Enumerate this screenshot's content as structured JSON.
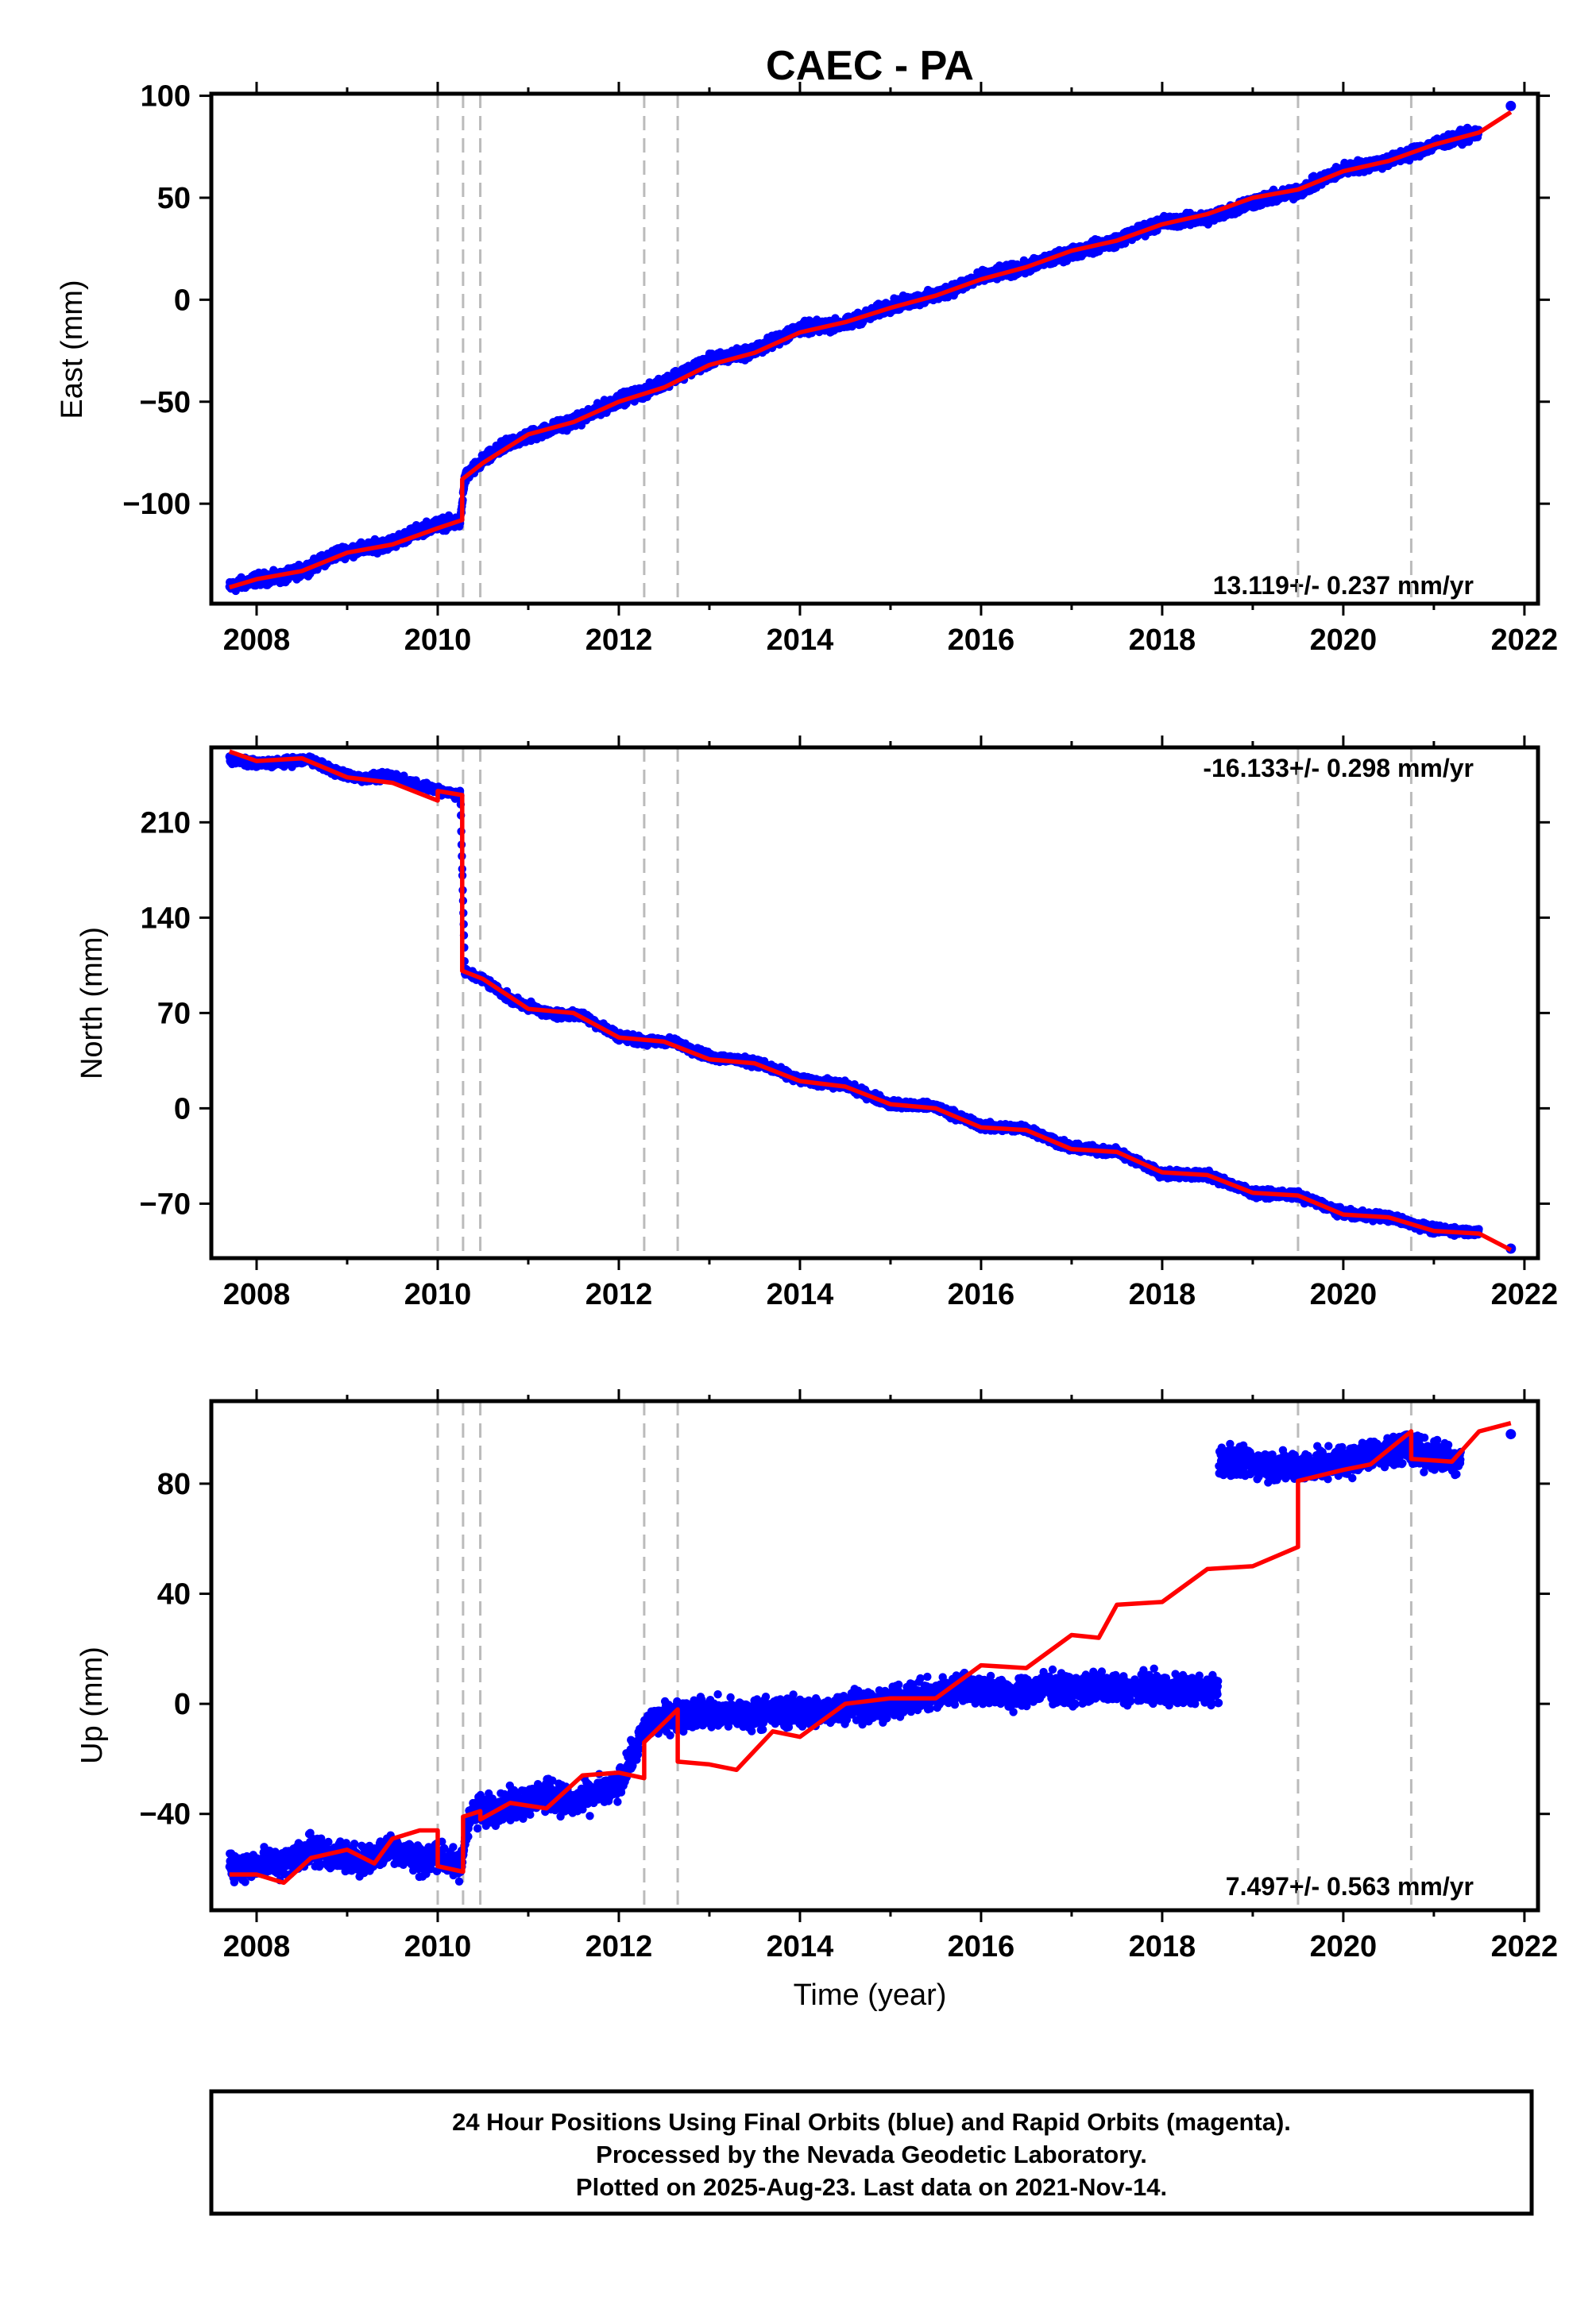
{
  "title": "CAEC - PA",
  "xlabel": "Time (year)",
  "footer": {
    "line1": "24 Hour Positions Using Final Orbits (blue) and Rapid Orbits (magenta).",
    "line2": "Processed by the Nevada Geodetic Laboratory.",
    "line3": "Plotted on 2025-Aug-23. Last data on 2021-Nov-14."
  },
  "colors": {
    "observed": "#0000ff",
    "model": "#ff0000",
    "steps": "#bbbbbb"
  },
  "chart_data": [
    {
      "type": "scatter",
      "component": "east",
      "ylabel": "East (mm)",
      "rate_label": "13.119+/- 0.237 mm/yr",
      "grid": false,
      "xlim": [
        2007.5,
        2022.15
      ],
      "ylim": [
        -149,
        101
      ],
      "xticks": [
        2008,
        2010,
        2012,
        2014,
        2016,
        2018,
        2020,
        2022
      ],
      "yticks": [
        -100,
        -50,
        0,
        50,
        100
      ],
      "ytick_labels": [
        "−100",
        "−50",
        "0",
        "50",
        "100"
      ],
      "step_epochs": [
        2010.0,
        2010.28,
        2010.47,
        2012.28,
        2012.65,
        2019.5,
        2020.75
      ],
      "series": [
        {
          "role": "observed",
          "x": [
            2007.7,
            2008.0,
            2008.3,
            2008.6,
            2008.9,
            2009.2,
            2009.5,
            2009.8,
            2010.0,
            2010.25,
            2010.3,
            2010.5,
            2010.8,
            2011.2,
            2011.6,
            2012.0,
            2012.3,
            2012.6,
            2013.0,
            2013.5,
            2014.0,
            2014.5,
            2015.0,
            2015.5,
            2016.0,
            2016.5,
            2017.0,
            2017.5,
            2018.0,
            2018.5,
            2019.0,
            2019.5,
            2020.0,
            2020.5,
            2021.0,
            2021.5
          ],
          "y": [
            -141,
            -137,
            -136,
            -131,
            -124,
            -122,
            -119,
            -113,
            -110,
            -109,
            -87,
            -79,
            -70,
            -64,
            -58,
            -49,
            -45,
            -38,
            -30,
            -25,
            -14,
            -12,
            -3,
            2,
            11,
            16,
            23,
            29,
            38,
            40,
            48,
            53,
            64,
            68,
            76,
            82
          ],
          "spread": 2.5
        },
        {
          "role": "model",
          "x": [
            2007.7,
            2008.0,
            2008.5,
            2009.0,
            2009.5,
            2010.0,
            2010.27,
            2010.27,
            2010.5,
            2011.0,
            2011.5,
            2012.0,
            2012.5,
            2013.0,
            2013.5,
            2014.0,
            2014.5,
            2015.0,
            2015.5,
            2016.0,
            2016.5,
            2017.0,
            2017.5,
            2018.0,
            2018.5,
            2019.0,
            2019.5,
            2020.0,
            2020.5,
            2021.0,
            2021.5,
            2021.85
          ],
          "y": [
            -141,
            -137,
            -133,
            -124,
            -120,
            -112,
            -108,
            -88,
            -80,
            -66,
            -60,
            -50,
            -43,
            -32,
            -26,
            -16,
            -11,
            -4,
            2,
            10,
            16,
            24,
            29,
            37,
            42,
            50,
            54,
            63,
            68,
            76,
            82,
            92
          ]
        }
      ],
      "last_points": [
        {
          "x": 2021.85,
          "y": 95
        }
      ]
    },
    {
      "type": "scatter",
      "component": "north",
      "ylabel": "North (mm)",
      "rate_label": "-16.133+/- 0.298 mm/yr",
      "grid": false,
      "xlim": [
        2007.5,
        2022.15
      ],
      "ylim": [
        -110,
        265
      ],
      "xticks": [
        2008,
        2010,
        2012,
        2014,
        2016,
        2018,
        2020,
        2022
      ],
      "yticks": [
        -70,
        0,
        70,
        140,
        210
      ],
      "ytick_labels": [
        "−70",
        "0",
        "70",
        "140",
        "210"
      ],
      "step_epochs": [
        2010.0,
        2010.28,
        2010.47,
        2012.28,
        2012.65,
        2019.5,
        2020.75
      ],
      "series": [
        {
          "role": "observed",
          "x": [
            2007.7,
            2008.0,
            2008.3,
            2008.6,
            2008.9,
            2009.2,
            2009.5,
            2009.8,
            2010.0,
            2010.25,
            2010.3,
            2010.5,
            2010.8,
            2011.2,
            2011.6,
            2012.0,
            2012.3,
            2012.6,
            2013.0,
            2013.5,
            2014.0,
            2014.5,
            2015.0,
            2015.5,
            2016.0,
            2016.5,
            2017.0,
            2017.5,
            2018.0,
            2018.5,
            2019.0,
            2019.5,
            2020.0,
            2020.5,
            2021.0,
            2021.5
          ],
          "y": [
            256,
            253,
            254,
            256,
            246,
            242,
            244,
            237,
            234,
            230,
            100,
            95,
            80,
            70,
            68,
            53,
            49,
            49,
            38,
            34,
            21,
            17,
            3,
            1,
            -13,
            -15,
            -29,
            -32,
            -48,
            -49,
            -62,
            -64,
            -77,
            -80,
            -89,
            -91
          ],
          "spread": 2.5
        },
        {
          "role": "model",
          "x": [
            2007.7,
            2008.0,
            2008.5,
            2009.0,
            2009.5,
            2010.0,
            2010.0,
            2010.27,
            2010.27,
            2010.5,
            2011.0,
            2011.5,
            2012.0,
            2012.5,
            2013.0,
            2013.5,
            2014.0,
            2014.5,
            2015.0,
            2015.5,
            2016.0,
            2016.5,
            2017.0,
            2017.5,
            2018.0,
            2018.5,
            2019.0,
            2019.5,
            2020.0,
            2020.5,
            2021.0,
            2021.5,
            2021.85
          ],
          "y": [
            262,
            255,
            257,
            243,
            239,
            226,
            233,
            230,
            101,
            95,
            73,
            70,
            52,
            49,
            36,
            33,
            20,
            16,
            3,
            0,
            -14,
            -16,
            -30,
            -32,
            -47,
            -49,
            -62,
            -64,
            -78,
            -80,
            -90,
            -92,
            -104
          ]
        }
      ],
      "last_points": [
        {
          "x": 2021.85,
          "y": -103
        }
      ]
    },
    {
      "type": "scatter",
      "component": "up",
      "ylabel": "Up (mm)",
      "rate_label": "7.497+/- 0.563 mm/yr",
      "grid": false,
      "xlim": [
        2007.5,
        2022.15
      ],
      "ylim": [
        -75,
        110
      ],
      "xticks": [
        2008,
        2010,
        2012,
        2014,
        2016,
        2018,
        2020,
        2022
      ],
      "yticks": [
        -40,
        0,
        40,
        80
      ],
      "ytick_labels": [
        "−40",
        "0",
        "40",
        "80"
      ],
      "step_epochs": [
        2010.0,
        2010.28,
        2010.47,
        2012.28,
        2012.65,
        2019.5,
        2020.75
      ],
      "series": [
        {
          "role": "observed",
          "x": [
            2007.7,
            2008.0,
            2008.3,
            2008.6,
            2008.8,
            2009.2,
            2009.5,
            2009.8,
            2010.0,
            2010.25,
            2010.35,
            2010.6,
            2010.9,
            2011.2,
            2011.5,
            2011.8,
            2012.0,
            2012.3,
            2012.6,
            2012.9,
            2013.3,
            2013.7,
            2014.0,
            2014.3,
            2014.6,
            2014.9,
            2015.2,
            2015.5,
            2015.8,
            2016.1,
            2016.4,
            2016.7,
            2017.0,
            2017.3,
            2017.6,
            2017.9,
            2018.2,
            2018.45,
            2018.8,
            2019.1,
            2019.4,
            2019.8,
            2020.1,
            2020.4,
            2020.7,
            2021.0,
            2021.3
          ],
          "y": [
            -60,
            -58,
            -58,
            -52,
            -55,
            -57,
            -52,
            -57,
            -55,
            -60,
            -40,
            -38,
            -36,
            -33,
            -36,
            -32,
            -30,
            -8,
            -4,
            -3,
            -4,
            -3,
            -3,
            -3,
            0,
            -1,
            2,
            3,
            6,
            5,
            3,
            6,
            5,
            6,
            5,
            6,
            5,
            5,
            88,
            87,
            86,
            87,
            89,
            91,
            93,
            90,
            89
          ],
          "spread": 4.5
        },
        {
          "role": "model",
          "x": [
            2007.7,
            2008.0,
            2008.3,
            2008.6,
            2009.0,
            2009.3,
            2009.5,
            2009.8,
            2010.0,
            2010.0,
            2010.28,
            2010.28,
            2010.47,
            2010.47,
            2010.8,
            2011.2,
            2011.6,
            2012.0,
            2012.28,
            2012.28,
            2012.65,
            2012.65,
            2013.0,
            2013.3,
            2013.7,
            2014.0,
            2014.5,
            2015.0,
            2015.5,
            2016.0,
            2016.5,
            2017.0,
            2017.3,
            2017.5,
            2018.0,
            2018.5,
            2019.0,
            2019.5,
            2019.5,
            2020.0,
            2020.3,
            2020.75,
            2020.75,
            2021.2,
            2021.5,
            2021.85
          ],
          "y": [
            -62,
            -62,
            -65,
            -56,
            -53,
            -58,
            -49,
            -46,
            -46,
            -59,
            -61,
            -41,
            -39,
            -42,
            -36,
            -38,
            -26,
            -25,
            -27,
            -14,
            -2,
            -21,
            -22,
            -24,
            -10,
            -12,
            0,
            2,
            2,
            14,
            13,
            25,
            24,
            36,
            37,
            49,
            50,
            57,
            81,
            85,
            87,
            99,
            89,
            88,
            99,
            102
          ]
        }
      ],
      "last_points": [
        {
          "x": 2021.85,
          "y": 98
        }
      ]
    }
  ]
}
